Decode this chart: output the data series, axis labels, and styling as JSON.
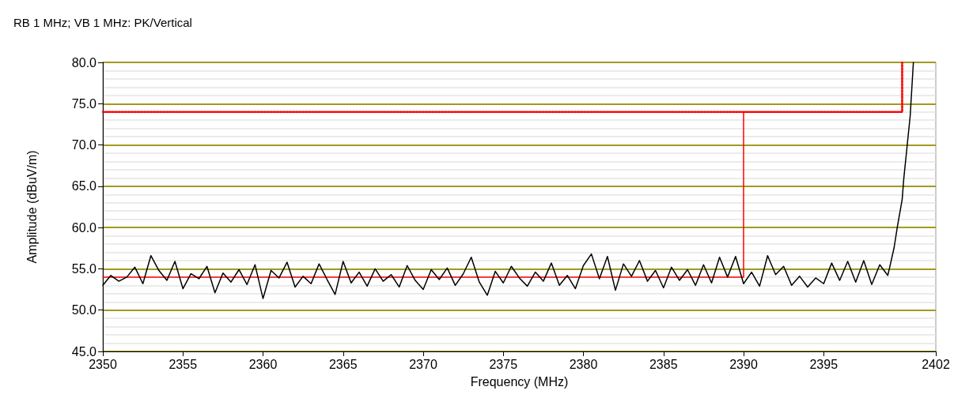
{
  "chart_data": {
    "type": "line",
    "title": "RB 1 MHz; VB 1 MHz: PK/Vertical",
    "xlabel": "Frequency (MHz)",
    "ylabel": "Amplitude (dBuV/m)",
    "xlim": [
      2350,
      2402
    ],
    "xticks": [
      2350,
      2355,
      2360,
      2365,
      2370,
      2375,
      2380,
      2385,
      2390,
      2395,
      2402
    ],
    "ylim": [
      45,
      80
    ],
    "yticks": [
      {
        "value": 45,
        "label": "45.0"
      },
      {
        "value": 50,
        "label": "50.0"
      },
      {
        "value": 55,
        "label": "55.0"
      },
      {
        "value": 60,
        "label": "60.0"
      },
      {
        "value": 65,
        "label": "65.0"
      },
      {
        "value": 70,
        "label": "70.0"
      },
      {
        "value": 75,
        "label": "75.0"
      },
      {
        "value": 80,
        "label": "80.0"
      }
    ],
    "grid": "y",
    "marker": "none",
    "series": [
      {
        "color": "#ff0000",
        "line_style": "solid",
        "x": [
          2350,
          2390,
          2390,
          2399.9,
          2399.9
        ],
        "values": [
          54,
          54,
          74,
          74,
          80
        ]
      },
      {
        "color": "#ff0000",
        "line_style": "dotted",
        "x": [
          2350,
          2399.9,
          2399.9
        ],
        "values": [
          74,
          74,
          80
        ]
      },
      {
        "color": "#000000",
        "line_style": "solid",
        "x": [
          2350,
          2350.5,
          2351,
          2351.5,
          2352,
          2352.5,
          2353,
          2353.5,
          2354,
          2354.5,
          2355,
          2355.5,
          2356,
          2356.5,
          2357,
          2357.5,
          2358,
          2358.5,
          2359,
          2359.5,
          2360,
          2360.5,
          2361,
          2361.5,
          2362,
          2362.5,
          2363,
          2363.5,
          2364,
          2364.5,
          2365,
          2365.5,
          2366,
          2366.5,
          2367,
          2367.5,
          2368,
          2368.5,
          2369,
          2369.5,
          2370,
          2370.5,
          2371,
          2371.5,
          2372,
          2372.5,
          2373,
          2373.5,
          2374,
          2374.5,
          2375,
          2375.5,
          2376,
          2376.5,
          2377,
          2377.5,
          2378,
          2378.5,
          2379,
          2379.5,
          2380,
          2380.5,
          2381,
          2381.5,
          2382,
          2382.5,
          2383,
          2383.5,
          2384,
          2384.5,
          2385,
          2385.5,
          2386,
          2386.5,
          2387,
          2387.5,
          2388,
          2388.5,
          2389,
          2389.5,
          2390,
          2390.5,
          2391,
          2391.5,
          2392,
          2392.5,
          2393,
          2393.5,
          2394,
          2394.5,
          2395,
          2395.5,
          2396,
          2396.5,
          2397,
          2397.5,
          2398,
          2398.5,
          2399,
          2399.1,
          2399.4,
          2399.6,
          2399.9,
          2400,
          2400.2,
          2400.4,
          2400.6
        ],
        "values": [
          53.0,
          54.2,
          53.5,
          54.0,
          55.2,
          53.2,
          56.6,
          54.8,
          53.6,
          55.9,
          52.6,
          54.4,
          53.8,
          55.3,
          52.1,
          54.5,
          53.4,
          54.9,
          53.1,
          55.5,
          51.4,
          54.8,
          53.9,
          55.8,
          52.8,
          54.1,
          53.2,
          55.6,
          53.7,
          51.9,
          55.9,
          53.3,
          54.6,
          52.9,
          55.0,
          53.5,
          54.3,
          52.8,
          55.4,
          53.6,
          52.5,
          54.9,
          53.7,
          55.1,
          53.0,
          54.4,
          56.4,
          53.4,
          51.8,
          54.7,
          53.3,
          55.3,
          53.9,
          52.9,
          54.6,
          53.5,
          55.7,
          53.0,
          54.2,
          52.6,
          55.4,
          56.8,
          53.8,
          56.5,
          52.4,
          55.6,
          54.1,
          56.0,
          53.5,
          54.8,
          52.7,
          55.2,
          53.6,
          54.9,
          53.0,
          55.5,
          53.3,
          56.4,
          54.0,
          56.5,
          53.2,
          54.6,
          52.9,
          56.6,
          54.3,
          55.3,
          53.0,
          54.1,
          52.8,
          53.9,
          53.2,
          55.7,
          53.6,
          55.9,
          53.4,
          56.0,
          53.1,
          55.5,
          54.2,
          55.0,
          57.6,
          60.1,
          63.4,
          65.9,
          69.7,
          73.5,
          80
        ]
      }
    ]
  }
}
